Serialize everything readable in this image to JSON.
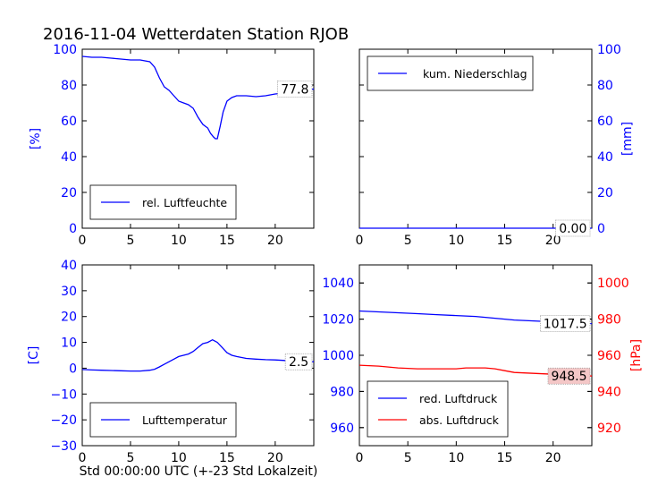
{
  "title": "2016-11-04 Wetterdaten Station RJOB",
  "xlabel": "Std 00:00:00 UTC (+-23 Std Lokalzeit)",
  "colors": {
    "blue": "#0000ff",
    "red": "#ff0000",
    "axis": "#000000"
  },
  "chart_data": [
    {
      "type": "line",
      "title": "",
      "ylabel": "[%]",
      "xlim": [
        0,
        24
      ],
      "ylim": [
        0,
        100
      ],
      "xticks": [
        0,
        5,
        10,
        15,
        20
      ],
      "yticks": [
        0,
        20,
        40,
        60,
        80,
        100
      ],
      "ytick_side": "left",
      "ytick_color": "#0000ff",
      "legend": "bottom-left",
      "last_value_label": "77.8",
      "last_value_bg": "#ffffff",
      "series": [
        {
          "name": "rel. Luftfeuchte",
          "color": "#0000ff",
          "x": [
            0,
            1,
            2,
            3,
            4,
            5,
            6,
            7,
            7.5,
            8,
            8.5,
            9,
            9.5,
            10,
            10.5,
            11,
            11.5,
            12,
            12.5,
            13,
            13.3,
            13.6,
            13.8,
            14,
            14.3,
            14.6,
            15,
            15.5,
            16,
            17,
            18,
            19,
            20,
            21,
            22,
            23,
            24
          ],
          "y": [
            96,
            95.5,
            95.5,
            95,
            94.5,
            94,
            94,
            93,
            90,
            84,
            79,
            77,
            74,
            71,
            70,
            69,
            67,
            62,
            58,
            56,
            53,
            51,
            50,
            50,
            57,
            65,
            71,
            73,
            74,
            74,
            73.5,
            74,
            75,
            75.5,
            75,
            76,
            77.8
          ]
        }
      ]
    },
    {
      "type": "line",
      "title": "",
      "ylabel": "[mm]",
      "xlim": [
        0,
        24
      ],
      "ylim": [
        0,
        100
      ],
      "xticks": [
        0,
        5,
        10,
        15,
        20
      ],
      "yticks": [
        0,
        20,
        40,
        60,
        80,
        100
      ],
      "ytick_side": "right",
      "ytick_color": "#0000ff",
      "legend": "top-left",
      "last_value_label": "0.00",
      "last_value_bg": "#ffffff",
      "series": [
        {
          "name": "kum. Niederschlag",
          "color": "#0000ff",
          "x": [
            0,
            24
          ],
          "y": [
            0,
            0
          ]
        }
      ]
    },
    {
      "type": "line",
      "title": "",
      "ylabel": "[C]",
      "xlim": [
        0,
        24
      ],
      "ylim": [
        -30,
        40
      ],
      "xticks": [
        0,
        5,
        10,
        15,
        20
      ],
      "yticks": [
        -30,
        -20,
        -10,
        0,
        10,
        20,
        30,
        40
      ],
      "ytick_side": "left",
      "ytick_color": "#0000ff",
      "legend": "bottom-left",
      "last_value_label": "2.5",
      "last_value_bg": "#ffffff",
      "series": [
        {
          "name": "Lufttemperatur",
          "color": "#0000ff",
          "x": [
            0,
            1,
            2,
            3,
            4,
            5,
            6,
            7,
            7.5,
            8,
            8.5,
            9,
            9.5,
            10,
            10.5,
            11,
            11.5,
            12,
            12.5,
            13,
            13.5,
            14,
            14.5,
            15,
            15.5,
            16,
            17,
            18,
            19,
            20,
            21,
            22,
            23,
            24
          ],
          "y": [
            -0.5,
            -0.7,
            -0.8,
            -0.9,
            -1,
            -1.1,
            -1.1,
            -0.8,
            -0.4,
            0.5,
            1.5,
            2.5,
            3.5,
            4.5,
            5,
            5.5,
            6.5,
            8,
            9.5,
            10,
            11,
            10,
            8,
            6,
            5,
            4.5,
            3.8,
            3.5,
            3.3,
            3.2,
            3,
            2.9,
            2.7,
            2.5
          ]
        }
      ]
    },
    {
      "type": "line",
      "title": "",
      "ylabel": "[hPa]",
      "xlim": [
        0,
        24
      ],
      "ylim": [
        950,
        1050
      ],
      "ylim_right": [
        910,
        1010
      ],
      "xticks": [
        0,
        5,
        10,
        15,
        20
      ],
      "yticks": [
        960,
        980,
        1000,
        1020,
        1040
      ],
      "yticks_right": [
        920,
        940,
        960,
        980,
        1000
      ],
      "ytick_color": "#0000ff",
      "ytick_right_color": "#ff0000",
      "legend": "bottom-left",
      "series": [
        {
          "name": "red. Luftdruck",
          "color": "#0000ff",
          "axis": "left",
          "last_value_label": "1017.5",
          "last_value_bg": "#ffffff",
          "x": [
            0,
            2,
            4,
            6,
            8,
            10,
            12,
            14,
            16,
            18,
            20,
            22,
            24
          ],
          "y": [
            1024.5,
            1024,
            1023.5,
            1023,
            1022.5,
            1022,
            1021.5,
            1020.5,
            1019.5,
            1019,
            1018.5,
            1018,
            1017.5
          ]
        },
        {
          "name": "abs. Luftdruck",
          "color": "#ff0000",
          "axis": "right",
          "last_value_label": "948.5",
          "last_value_bg": "#f4c7c7",
          "x": [
            0,
            2,
            4,
            6,
            8,
            10,
            11,
            12,
            13,
            14,
            15,
            16,
            18,
            20,
            22,
            24
          ],
          "y": [
            954.5,
            954,
            953,
            952.5,
            952.5,
            952.5,
            953,
            953,
            953,
            952.5,
            951.5,
            950.5,
            950,
            949.5,
            949,
            948.5
          ]
        }
      ]
    }
  ]
}
